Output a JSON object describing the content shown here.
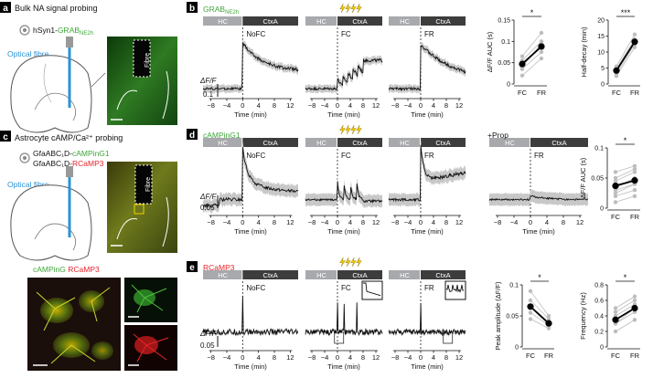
{
  "panels": {
    "a": {
      "letter": "a",
      "title": "Bulk NA signal probing",
      "construct_prefix": "hSyn1-",
      "construct_sensor": "GRAB",
      "construct_sub": "NE2h",
      "fibre_label": "Optical fibre",
      "histology_label": "Fibre"
    },
    "b": {
      "letter": "b",
      "sensor_main": "GRAB",
      "sensor_sub": "NE2h",
      "y_axis_label": "ΔF/F",
      "scale_value": "0.1",
      "x_axis_label": "Time (min)",
      "x_ticks": [
        "−8",
        "−4",
        "0",
        "4",
        "8",
        "12"
      ],
      "sessions": [
        {
          "hc": "HC",
          "ctx": "CtxA",
          "tag": "NoFC",
          "shock": false
        },
        {
          "hc": "HC",
          "ctx": "CtxA",
          "tag": "FC",
          "shock": true
        },
        {
          "hc": "HC",
          "ctx": "CtxA",
          "tag": "FR",
          "shock": false
        }
      ]
    },
    "c": {
      "letter": "c",
      "title": "Astrocyte cAMP/Ca²⁺ probing",
      "construct_line1_prefix": "GfaABC₁D-",
      "construct_line1_sensor": "cAMPinG1",
      "construct_line2_prefix": "GfaABC₁D-",
      "construct_line2_sensor": "RCaMP3",
      "fibre_label": "Optical fibre",
      "histology_label": "Fibre",
      "overlay_green": "cAMPinG",
      "overlay_red": "RCaMP3"
    },
    "d": {
      "letter": "d",
      "sensor": "cAMPinG1",
      "y_axis_label": "ΔF/F",
      "scale_value": "0.05",
      "x_axis_label": "Time (min)",
      "x_ticks": [
        "−8",
        "−4",
        "0",
        "4",
        "8",
        "12"
      ],
      "prop_label": "+Prop",
      "sessions": [
        {
          "hc": "HC",
          "ctx": "CtxA",
          "tag": "NoFC",
          "shock": false
        },
        {
          "hc": "HC",
          "ctx": "CtxA",
          "tag": "FC",
          "shock": true
        },
        {
          "hc": "HC",
          "ctx": "CtxA",
          "tag": "FR",
          "shock": false
        },
        {
          "hc": "HC",
          "ctx": "CtxA",
          "tag": "FR",
          "shock": false
        }
      ]
    },
    "e": {
      "letter": "e",
      "sensor": "RCaMP3",
      "y_axis_label": "ΔF/F",
      "scale_value": "0.05",
      "x_axis_label": "Time (min)",
      "x_ticks": [
        "−8",
        "−4",
        "0",
        "4",
        "8",
        "12"
      ],
      "sessions": [
        {
          "hc": "HC",
          "ctx": "CtxA",
          "tag": "NoFC",
          "shock": false
        },
        {
          "hc": "HC",
          "ctx": "CtxA",
          "tag": "FC",
          "shock": true
        },
        {
          "hc": "HC",
          "ctx": "CtxA",
          "tag": "FR",
          "shock": false
        }
      ]
    }
  },
  "chart_data": [
    {
      "id": "b-auc",
      "type": "scatter",
      "ylabel": "ΔF/F AUC (s)",
      "categories": [
        "FC",
        "FR"
      ],
      "ylim": [
        0,
        0.15
      ],
      "yticks": [
        0,
        0.05,
        0.1,
        0.15
      ],
      "significance": "*",
      "mean": [
        0.047,
        0.088
      ],
      "individual": [
        [
          0.02,
          0.06
        ],
        [
          0.035,
          0.075
        ],
        [
          0.05,
          0.085
        ],
        [
          0.055,
          0.1
        ],
        [
          0.065,
          0.12
        ],
        [
          0.04,
          0.095
        ]
      ]
    },
    {
      "id": "b-halfdecay",
      "type": "scatter",
      "ylabel": "Half-decay (min)",
      "categories": [
        "FC",
        "FR"
      ],
      "ylim": [
        0,
        20
      ],
      "yticks": [
        0,
        5,
        10,
        15,
        20
      ],
      "significance": "***",
      "mean": [
        4.2,
        13.2
      ],
      "individual": [
        [
          2.5,
          11.5
        ],
        [
          3.2,
          12.5
        ],
        [
          4.0,
          13.0
        ],
        [
          4.8,
          14.0
        ],
        [
          5.5,
          15.5
        ],
        [
          4.4,
          12.8
        ]
      ]
    },
    {
      "id": "d-auc",
      "type": "scatter",
      "ylabel": "ΔF/F AUC (s)",
      "categories": [
        "FC",
        "FR"
      ],
      "ylim": [
        0,
        0.1
      ],
      "yticks": [
        0,
        0.05,
        0.1
      ],
      "significance": "*",
      "mean": [
        0.037,
        0.046
      ],
      "individual": [
        [
          0.01,
          0.02
        ],
        [
          0.02,
          0.03
        ],
        [
          0.03,
          0.04
        ],
        [
          0.035,
          0.05
        ],
        [
          0.045,
          0.06
        ],
        [
          0.05,
          0.065
        ],
        [
          0.06,
          0.07
        ],
        [
          0.025,
          0.04
        ],
        [
          0.04,
          0.045
        ]
      ]
    },
    {
      "id": "e-peak",
      "type": "scatter",
      "ylabel": "Peak amplitude (ΔF/F)",
      "categories": [
        "FC",
        "FR"
      ],
      "ylim": [
        0,
        0.1
      ],
      "yticks": [
        0,
        0.05,
        0.1
      ],
      "significance": "*",
      "mean": [
        0.065,
        0.038
      ],
      "individual": [
        [
          0.09,
          0.05
        ],
        [
          0.075,
          0.045
        ],
        [
          0.065,
          0.04
        ],
        [
          0.055,
          0.035
        ],
        [
          0.045,
          0.03
        ]
      ]
    },
    {
      "id": "e-frequency",
      "type": "scatter",
      "ylabel": "Frequency (Hz)",
      "categories": [
        "FC",
        "FR"
      ],
      "ylim": [
        0,
        0.8
      ],
      "yticks": [
        0,
        0.2,
        0.4,
        0.6,
        0.8
      ],
      "significance": "*",
      "mean": [
        0.35,
        0.5
      ],
      "individual": [
        [
          0.2,
          0.35
        ],
        [
          0.3,
          0.45
        ],
        [
          0.35,
          0.5
        ],
        [
          0.4,
          0.55
        ],
        [
          0.45,
          0.6
        ],
        [
          0.5,
          0.65
        ],
        [
          0.3,
          0.5
        ]
      ]
    }
  ],
  "colors": {
    "green": "#3ea63a",
    "red": "#e8242a",
    "fibre_blue": "#2a93d5",
    "bar_light": "#a7a9ac",
    "bar_dark": "#3d3d3d",
    "shock": "#f4d000",
    "sem_band": "#c8c8c8",
    "trace": "#111111",
    "point_grey": "#bdbdbd"
  }
}
